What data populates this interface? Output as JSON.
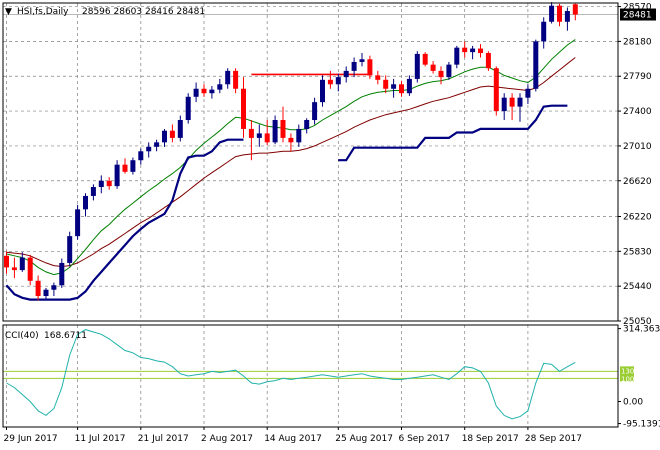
{
  "header": {
    "menu_glyph": "▼",
    "symbol": "HSI,fs,Daily",
    "ohlc": "28596 28603 28416 28481"
  },
  "last_price_label": "28481",
  "indicator": {
    "name": "CCI(40)",
    "value": "168.6711",
    "level_high_label": "130",
    "level_low_label": "100"
  },
  "colors": {
    "bull": "#000080",
    "bear": "#ff0000",
    "ema_fast": "#008000",
    "ema_slow": "#800000",
    "stop_line": "#000080",
    "resistance": "#ff0000",
    "cci_line": "#20b2aa",
    "cci_levels": "#9acd32",
    "grid": "#808080"
  },
  "chart_data": [
    {
      "type": "candlestick",
      "ylim": [
        25050,
        28610
      ],
      "y_ticks": [
        {
          "value": 28570,
          "label": "28570"
        },
        {
          "value": 28180,
          "label": "28180"
        },
        {
          "value": 27790,
          "label": "27790"
        },
        {
          "value": 27400,
          "label": "27400"
        },
        {
          "value": 27010,
          "label": "27010"
        },
        {
          "value": 26620,
          "label": "26620"
        },
        {
          "value": 26220,
          "label": "26220"
        },
        {
          "value": 25830,
          "label": "25830"
        },
        {
          "value": 25440,
          "label": "25440"
        },
        {
          "value": 25050,
          "label": "25050"
        }
      ],
      "x_labels": [
        {
          "index": 0,
          "label": "29 Jun 2017"
        },
        {
          "index": 9,
          "label": "11 Jul 2017"
        },
        {
          "index": 17,
          "label": "21 Jul 2017"
        },
        {
          "index": 25,
          "label": "2 Aug 2017"
        },
        {
          "index": 33,
          "label": "14 Aug 2017"
        },
        {
          "index": 42,
          "label": "25 Aug 2017"
        },
        {
          "index": 50,
          "label": "6 Sep 2017"
        },
        {
          "index": 58,
          "label": "18 Sep 2017"
        },
        {
          "index": 66,
          "label": "28 Sep 2017"
        }
      ],
      "grid": true,
      "last_price": 28481,
      "candles": [
        [
          25780,
          25830,
          25580,
          25650
        ],
        [
          25650,
          25760,
          25530,
          25620
        ],
        [
          25620,
          25820,
          25600,
          25760
        ],
        [
          25760,
          25790,
          25450,
          25500
        ],
        [
          25500,
          25560,
          25280,
          25330
        ],
        [
          25330,
          25420,
          25280,
          25400
        ],
        [
          25400,
          25480,
          25330,
          25450
        ],
        [
          25450,
          25750,
          25420,
          25700
        ],
        [
          25700,
          26050,
          25660,
          26000
        ],
        [
          26000,
          26350,
          25960,
          26300
        ],
        [
          26300,
          26480,
          26220,
          26450
        ],
        [
          26450,
          26580,
          26400,
          26550
        ],
        [
          26550,
          26680,
          26480,
          26620
        ],
        [
          26620,
          26660,
          26520,
          26560
        ],
        [
          26560,
          26850,
          26530,
          26800
        ],
        [
          26800,
          26870,
          26700,
          26720
        ],
        [
          26720,
          26880,
          26690,
          26850
        ],
        [
          26850,
          26980,
          26800,
          26950
        ],
        [
          26950,
          27050,
          26880,
          27000
        ],
        [
          27000,
          27080,
          26950,
          27050
        ],
        [
          27050,
          27200,
          27000,
          27180
        ],
        [
          27180,
          27250,
          27050,
          27100
        ],
        [
          27100,
          27350,
          27060,
          27300
        ],
        [
          27300,
          27600,
          27260,
          27560
        ],
        [
          27560,
          27720,
          27500,
          27650
        ],
        [
          27650,
          27700,
          27560,
          27600
        ],
        [
          27600,
          27680,
          27540,
          27640
        ],
        [
          27640,
          27760,
          27600,
          27700
        ],
        [
          27700,
          27880,
          27650,
          27850
        ],
        [
          27850,
          27880,
          27600,
          27650
        ],
        [
          27650,
          27780,
          27100,
          27200
        ],
        [
          27200,
          27300,
          26850,
          27100
        ],
        [
          27100,
          27250,
          27000,
          27150
        ],
        [
          27150,
          27300,
          27020,
          27050
        ],
        [
          27050,
          27350,
          27030,
          27300
        ],
        [
          27300,
          27450,
          27050,
          27100
        ],
        [
          27100,
          27150,
          26950,
          27050
        ],
        [
          27050,
          27250,
          27000,
          27200
        ],
        [
          27200,
          27320,
          27150,
          27300
        ],
        [
          27300,
          27550,
          27250,
          27500
        ],
        [
          27500,
          27800,
          27450,
          27750
        ],
        [
          27750,
          27850,
          27650,
          27700
        ],
        [
          27700,
          27820,
          27620,
          27780
        ],
        [
          27780,
          27900,
          27720,
          27850
        ],
        [
          27850,
          28000,
          27780,
          27950
        ],
        [
          27950,
          28050,
          27900,
          27980
        ],
        [
          27980,
          28020,
          27760,
          27800
        ],
        [
          27800,
          27850,
          27700,
          27750
        ],
        [
          27750,
          27800,
          27600,
          27650
        ],
        [
          27650,
          27760,
          27550,
          27700
        ],
        [
          27700,
          27740,
          27560,
          27600
        ],
        [
          27600,
          27800,
          27570,
          27760
        ],
        [
          27760,
          28070,
          27720,
          28040
        ],
        [
          28040,
          28060,
          27900,
          27920
        ],
        [
          27920,
          27960,
          27820,
          27850
        ],
        [
          27850,
          27900,
          27700,
          27780
        ],
        [
          27780,
          27950,
          27750,
          27920
        ],
        [
          27920,
          28130,
          27880,
          28110
        ],
        [
          28110,
          28180,
          28000,
          28060
        ],
        [
          28060,
          28130,
          27980,
          28100
        ],
        [
          28100,
          28150,
          28000,
          28050
        ],
        [
          28050,
          28070,
          27850,
          27880
        ],
        [
          27880,
          27900,
          27350,
          27400
        ],
        [
          27400,
          27600,
          27300,
          27550
        ],
        [
          27550,
          27600,
          27300,
          27450
        ],
        [
          27450,
          27600,
          27280,
          27550
        ],
        [
          27550,
          27700,
          27480,
          27650
        ],
        [
          27650,
          28200,
          27620,
          28180
        ],
        [
          28180,
          28450,
          28100,
          28400
        ],
        [
          28400,
          28620,
          28380,
          28580
        ],
        [
          28580,
          28600,
          28350,
          28400
        ],
        [
          28400,
          28560,
          28300,
          28520
        ],
        [
          28596,
          28603,
          28416,
          28481
        ]
      ],
      "ema_fast": [
        25800,
        25780,
        25760,
        25720,
        25650,
        25600,
        25570,
        25590,
        25650,
        25750,
        25850,
        25960,
        26060,
        26130,
        26220,
        26300,
        26370,
        26440,
        26510,
        26570,
        26640,
        26700,
        26770,
        26860,
        26960,
        27040,
        27110,
        27180,
        27260,
        27330,
        27320,
        27290,
        27260,
        27230,
        27220,
        27210,
        27190,
        27190,
        27200,
        27240,
        27300,
        27350,
        27400,
        27450,
        27510,
        27560,
        27590,
        27610,
        27620,
        27630,
        27630,
        27640,
        27680,
        27710,
        27730,
        27740,
        27760,
        27800,
        27840,
        27870,
        27890,
        27890,
        27850,
        27800,
        27770,
        27740,
        27720,
        27780,
        27880,
        27980,
        28060,
        28140,
        28200
      ],
      "ema_slow": [
        25820,
        25810,
        25800,
        25780,
        25740,
        25700,
        25670,
        25660,
        25670,
        25700,
        25750,
        25800,
        25860,
        25910,
        25970,
        26030,
        26090,
        26150,
        26200,
        26260,
        26320,
        26380,
        26440,
        26510,
        26580,
        26650,
        26710,
        26770,
        26830,
        26890,
        26910,
        26920,
        26930,
        26930,
        26940,
        26950,
        26950,
        26960,
        26980,
        27010,
        27050,
        27090,
        27130,
        27170,
        27220,
        27260,
        27300,
        27330,
        27360,
        27380,
        27400,
        27420,
        27450,
        27480,
        27510,
        27530,
        27550,
        27580,
        27610,
        27640,
        27670,
        27680,
        27670,
        27660,
        27650,
        27640,
        27630,
        27660,
        27720,
        27790,
        27860,
        27930,
        28000
      ],
      "stop_segments": [
        {
          "points": [
            [
              0,
              25450
            ],
            [
              1,
              25350
            ],
            [
              2,
              25310
            ],
            [
              3,
              25290
            ],
            [
              4,
              25290
            ],
            [
              5,
              25290
            ],
            [
              6,
              25290
            ],
            [
              7,
              25290
            ],
            [
              8,
              25290
            ],
            [
              9,
              25310
            ],
            [
              10,
              25380
            ],
            [
              11,
              25500
            ],
            [
              12,
              25600
            ],
            [
              13,
              25700
            ],
            [
              14,
              25800
            ],
            [
              15,
              25900
            ],
            [
              16,
              26000
            ],
            [
              17,
              26080
            ],
            [
              18,
              26150
            ],
            [
              19,
              26200
            ],
            [
              20,
              26250
            ],
            [
              21,
              26400
            ],
            [
              22,
              26700
            ],
            [
              23,
              26880
            ],
            [
              24,
              26900
            ],
            [
              25,
              26900
            ],
            [
              26,
              26950
            ],
            [
              27,
              27050
            ],
            [
              28,
              27080
            ],
            [
              29,
              27080
            ],
            [
              30,
              27080
            ]
          ]
        },
        {
          "points": [
            [
              42,
              26850
            ],
            [
              43,
              26850
            ],
            [
              44,
              26990
            ],
            [
              45,
              26990
            ],
            [
              46,
              26990
            ],
            [
              47,
              26990
            ],
            [
              48,
              26990
            ],
            [
              49,
              26990
            ],
            [
              50,
              26990
            ],
            [
              51,
              26990
            ],
            [
              52,
              26990
            ],
            [
              53,
              27100
            ],
            [
              54,
              27100
            ],
            [
              55,
              27100
            ],
            [
              56,
              27100
            ],
            [
              57,
              27160
            ],
            [
              58,
              27160
            ],
            [
              59,
              27160
            ],
            [
              60,
              27200
            ],
            [
              61,
              27200
            ],
            [
              62,
              27200
            ],
            [
              63,
              27200
            ],
            [
              64,
              27200
            ],
            [
              65,
              27200
            ],
            [
              66,
              27200
            ],
            [
              67,
              27300
            ],
            [
              68,
              27450
            ],
            [
              69,
              27460
            ],
            [
              70,
              27460
            ],
            [
              71,
              27460
            ]
          ]
        }
      ],
      "resistance_line": {
        "start": 31,
        "end": 46,
        "value": 27810
      }
    },
    {
      "type": "line",
      "name": "CCI(40)",
      "ylim": [
        -110,
        330
      ],
      "y_ticks": [
        {
          "value": 314.3633,
          "label": "314.3633"
        },
        {
          "value": 0,
          "label": "0.00"
        },
        {
          "value": -95.1391,
          "label": "-95.1391"
        }
      ],
      "levels": [
        130,
        100
      ],
      "values": [
        80,
        60,
        30,
        0,
        -40,
        -60,
        -30,
        60,
        200,
        290,
        310,
        300,
        290,
        270,
        245,
        220,
        210,
        190,
        185,
        175,
        170,
        150,
        120,
        110,
        115,
        120,
        130,
        125,
        130,
        135,
        110,
        80,
        75,
        85,
        90,
        100,
        95,
        100,
        105,
        110,
        115,
        110,
        105,
        110,
        115,
        120,
        110,
        105,
        100,
        95,
        95,
        100,
        105,
        110,
        115,
        105,
        95,
        120,
        150,
        145,
        130,
        80,
        -20,
        -60,
        -75,
        -65,
        -40,
        80,
        165,
        160,
        130,
        150,
        168.6711
      ]
    }
  ]
}
